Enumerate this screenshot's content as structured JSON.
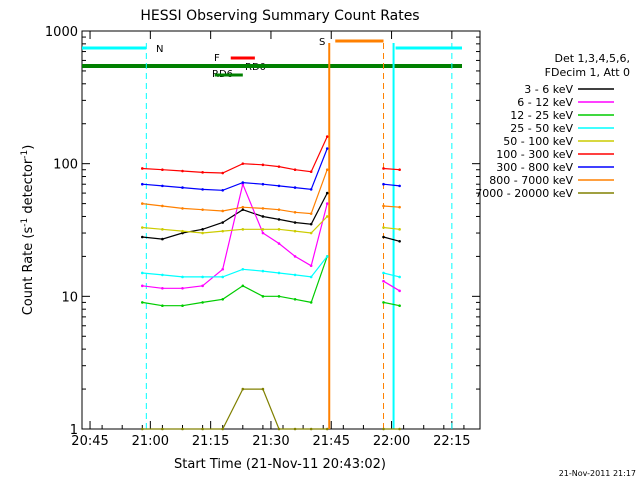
{
  "chart_data": {
    "type": "line",
    "title": "HESSI Observing Summary Count Rates",
    "xlabel": "Start Time (21-Nov-11 20:43:02)",
    "ylabel_parts": [
      "Count Rate (s",
      "-1",
      " detector",
      "-1",
      ")"
    ],
    "yscale": "log",
    "ylim": [
      1,
      1000
    ],
    "xlim_minutes": [
      -2,
      97
    ],
    "x_ticks": [
      {
        "label": "20:45",
        "min": 0
      },
      {
        "label": "21:00",
        "min": 15
      },
      {
        "label": "21:15",
        "min": 30
      },
      {
        "label": "21:30",
        "min": 45
      },
      {
        "label": "21:45",
        "min": 60
      },
      {
        "label": "22:00",
        "min": 75
      },
      {
        "label": "22:15",
        "min": 90
      }
    ],
    "y_ticks": [
      {
        "label": "1",
        "v": 1
      },
      {
        "label": "10",
        "v": 10
      },
      {
        "label": "100",
        "v": 100
      },
      {
        "label": "1000",
        "v": 1000
      }
    ],
    "legend_header": [
      "Det 1,3,4,5,6,",
      "FDecim 1, Att 0"
    ],
    "series": [
      {
        "name": "3 - 6 keV",
        "color": "#000000",
        "values": [
          28,
          27,
          30,
          32,
          36,
          45,
          40,
          38,
          36,
          35,
          60,
          28,
          26
        ]
      },
      {
        "name": "6 - 12 keV",
        "color": "#ff00ff",
        "values": [
          12,
          11.5,
          11.5,
          12,
          16,
          70,
          30,
          25,
          20,
          17,
          50,
          13,
          11
        ]
      },
      {
        "name": "12 - 25 keV",
        "color": "#00cc00",
        "values": [
          9,
          8.5,
          8.5,
          9,
          9.5,
          12,
          10,
          10,
          9.5,
          9,
          20,
          9,
          8.5
        ]
      },
      {
        "name": "25 - 50 keV",
        "color": "#00ffff",
        "values": [
          15,
          14.5,
          14,
          14,
          14,
          16,
          15.5,
          15,
          14.5,
          14,
          20,
          15,
          14
        ]
      },
      {
        "name": "50 - 100 keV",
        "color": "#cccc00",
        "values": [
          33,
          32,
          31,
          30,
          31,
          32,
          32,
          32,
          31,
          30,
          40,
          33,
          32
        ]
      },
      {
        "name": "100 - 300 keV",
        "color": "#ff0000",
        "values": [
          92,
          90,
          88,
          86,
          85,
          100,
          98,
          95,
          90,
          87,
          160,
          92,
          90
        ]
      },
      {
        "name": "300 - 800 keV",
        "color": "#0000ff",
        "values": [
          70,
          68,
          66,
          64,
          63,
          72,
          70,
          68,
          66,
          64,
          130,
          70,
          68
        ]
      },
      {
        "name": "800 - 7000 keV",
        "color": "#ff8000",
        "values": [
          50,
          48,
          46,
          45,
          44,
          47,
          46,
          45,
          43,
          42,
          90,
          48,
          47
        ]
      },
      {
        "name": "7000 - 20000 keV",
        "color": "#808000",
        "values": [
          1,
          1,
          1,
          1,
          1,
          2,
          2,
          1,
          1,
          1,
          1,
          1,
          1
        ]
      }
    ],
    "series_x_minutes": [
      13,
      18,
      23,
      28,
      33,
      38,
      43,
      47,
      51,
      55,
      59,
      73,
      77
    ],
    "flag_labels": {
      "n": "N",
      "s": "S",
      "f": "F",
      "rd0": "RD0",
      "rd6": "RD6"
    },
    "footer_date": "21-Nov-2011 21:17"
  }
}
